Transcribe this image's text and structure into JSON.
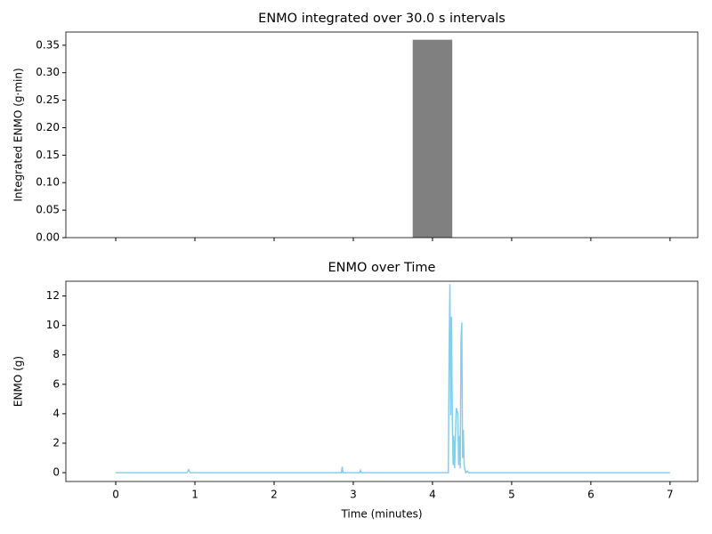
{
  "chart_data": [
    {
      "type": "bar",
      "title": "ENMO integrated over 30.0 s intervals",
      "ylabel": "Integrated ENMO (g·min)",
      "x": [
        0,
        0.5,
        1,
        1.5,
        2,
        2.5,
        3,
        3.5,
        4,
        4.5,
        5,
        5.5,
        6,
        6.5
      ],
      "values": [
        0,
        0,
        0,
        0,
        0,
        0,
        0,
        0,
        0.36,
        0,
        0,
        0,
        0,
        0
      ],
      "bar_width": 0.5,
      "color": "#808080",
      "xlim": [
        -0.63,
        7.35
      ],
      "ylim": [
        0,
        0.374
      ],
      "yticks": [
        {
          "value": 0,
          "label": "0.00"
        },
        {
          "value": 0.05,
          "label": "0.05"
        },
        {
          "value": 0.1,
          "label": "0.10"
        },
        {
          "value": 0.15,
          "label": "0.15"
        },
        {
          "value": 0.2,
          "label": "0.20"
        },
        {
          "value": 0.25,
          "label": "0.25"
        },
        {
          "value": 0.3,
          "label": "0.30"
        },
        {
          "value": 0.35,
          "label": "0.35"
        }
      ]
    },
    {
      "type": "line",
      "title": "ENMO over Time",
      "xlabel": "Time (minutes)",
      "ylabel": "ENMO (g)",
      "x": [
        0,
        0.9,
        0.92,
        0.94,
        2.85,
        2.86,
        2.87,
        3.08,
        3.09,
        3.1,
        4.2,
        4.21,
        4.22,
        4.23,
        4.24,
        4.25,
        4.26,
        4.27,
        4.28,
        4.3,
        4.32,
        4.33,
        4.34,
        4.35,
        4.36,
        4.37,
        4.38,
        4.39,
        4.4,
        4.41,
        4.42,
        4.44,
        4.46,
        4.5,
        7
      ],
      "values": [
        0,
        0,
        0.2,
        0,
        0,
        0.4,
        0,
        0,
        0.15,
        0,
        0,
        8,
        12.8,
        3.9,
        10.6,
        3.8,
        0.5,
        2.5,
        0.3,
        4.4,
        4.0,
        0.5,
        2.5,
        0.3,
        9,
        10.2,
        1,
        2.9,
        0.5,
        0.2,
        0,
        0.1,
        0,
        0,
        0
      ],
      "color": "#87ceeb",
      "xlim": [
        -0.63,
        7.35
      ],
      "ylim": [
        -0.6,
        13.0
      ],
      "xticks": [
        0,
        1,
        2,
        3,
        4,
        5,
        6,
        7
      ],
      "yticks": [
        0,
        2,
        4,
        6,
        8,
        10,
        12
      ]
    }
  ]
}
